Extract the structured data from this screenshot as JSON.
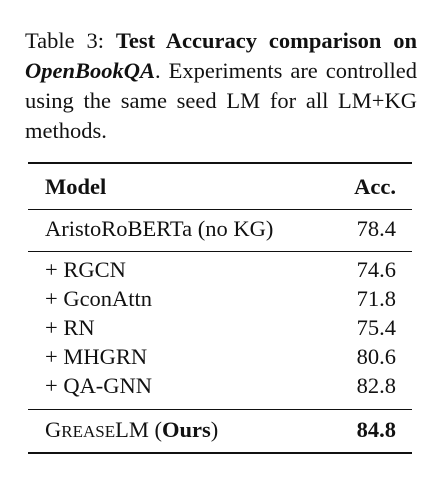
{
  "caption": {
    "label": "Table 3: ",
    "bold_part1": "Test Accuracy comparison on ",
    "bold_italic": "OpenBookQA",
    "rest": ". Experiments are controlled using the same seed LM for all LM+KG methods."
  },
  "table": {
    "headers": {
      "model": "Model",
      "acc": "Acc."
    },
    "baseline": {
      "model": "AristoRoBERTa (no KG)",
      "acc": "78.4"
    },
    "methods": [
      {
        "model": "+ RGCN",
        "acc": "74.6"
      },
      {
        "model": "+ GconAttn",
        "acc": "71.8"
      },
      {
        "model": "+ RN",
        "acc": "75.4"
      },
      {
        "model": "+ MHGRN",
        "acc": "80.6"
      },
      {
        "model": "+ QA-GNN",
        "acc": "82.8"
      }
    ],
    "ours": {
      "name_G": "G",
      "name_rease": "REASE",
      "name_LM": "LM",
      "open_paren": " (",
      "ours_label": "Ours",
      "close_paren": ")",
      "acc": "84.8"
    }
  }
}
